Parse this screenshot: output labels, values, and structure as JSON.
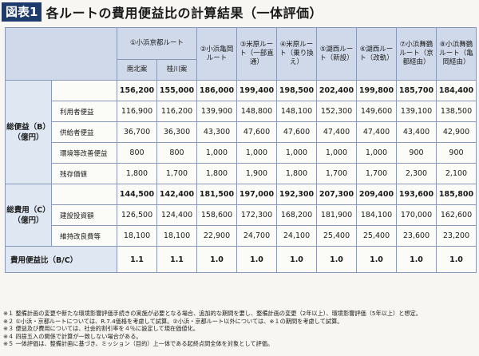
{
  "header": {
    "figure_label": "図表1",
    "title": "各ルートの費用便益比の計算結果（一体評価）"
  },
  "table": {
    "route1_group": "①小浜京都ルート",
    "columns": [
      {
        "label": "南北案"
      },
      {
        "label": "桂川案"
      },
      {
        "label": "②小浜亀岡ルート"
      },
      {
        "label": "③米原ルート（一部直通）"
      },
      {
        "label": "④米原ルート（乗り換え）"
      },
      {
        "label": "⑤湖西ルート（新設）"
      },
      {
        "label": "⑥湖西ルート（改軌）"
      },
      {
        "label": "⑦小浜舞鶴ルート（京都経由）"
      },
      {
        "label": "⑧小浜舞鶴ルート（亀岡経由）"
      }
    ],
    "benefit_group": "総便益（B）（億円）",
    "cost_group": "総費用（C）（億円）",
    "ratio_label": "費用便益比（B/C）",
    "benefit_total": [
      "156,200",
      "155,000",
      "186,000",
      "199,400",
      "198,500",
      "202,400",
      "199,800",
      "185,700",
      "184,400"
    ],
    "benefit_rows": [
      {
        "label": "利用者便益",
        "values": [
          "116,900",
          "116,200",
          "139,900",
          "148,800",
          "148,100",
          "152,300",
          "149,600",
          "139,100",
          "138,500"
        ]
      },
      {
        "label": "供給者便益",
        "values": [
          "36,700",
          "36,300",
          "43,300",
          "47,600",
          "47,600",
          "47,400",
          "47,400",
          "43,400",
          "42,900"
        ]
      },
      {
        "label": "環境等改善便益",
        "values": [
          "800",
          "800",
          "1,000",
          "1,000",
          "1,000",
          "1,000",
          "1,000",
          "900",
          "900"
        ]
      },
      {
        "label": "残存価値",
        "values": [
          "1,800",
          "1,700",
          "1,800",
          "1,900",
          "1,800",
          "1,700",
          "1,700",
          "2,300",
          "2,100"
        ]
      }
    ],
    "cost_total": [
      "144,500",
      "142,400",
      "181,500",
      "197,000",
      "192,300",
      "207,300",
      "209,400",
      "193,600",
      "185,800"
    ],
    "cost_rows": [
      {
        "label": "建設投資額",
        "values": [
          "126,500",
          "124,400",
          "158,600",
          "172,300",
          "168,200",
          "181,900",
          "184,100",
          "170,000",
          "162,600"
        ]
      },
      {
        "label": "維持改良費等",
        "values": [
          "18,100",
          "18,100",
          "22,900",
          "24,700",
          "24,100",
          "25,400",
          "25,400",
          "23,600",
          "23,200"
        ]
      }
    ],
    "ratio": [
      "1.1",
      "1.1",
      "1.0",
      "1.0",
      "1.0",
      "1.0",
      "1.0",
      "1.0",
      "1.0"
    ]
  },
  "notes": [
    "※１ 整備計画の変更や新たな環境影響評価手続きの実施が必要となる場合、追加的な期間を要し、整備計画の変更（2年以上）、環境影響評価（5年以上）と想定。",
    "※２ ①小浜・京都ルートについては、R.7.4価格を考慮して試算。②小浜・京都ルート以外については、※１の期間を考慮して試算。",
    "※３ 便益及び費用については、社会的割引率を４％に設定して現在価値化。",
    "※４ 四捨五入の関係で計算が一致しない場合がある。",
    "※５ 一体評価は、整備計画に基づき、ミッション（目的）上一体である起終点間全体を対象として評価。"
  ]
}
